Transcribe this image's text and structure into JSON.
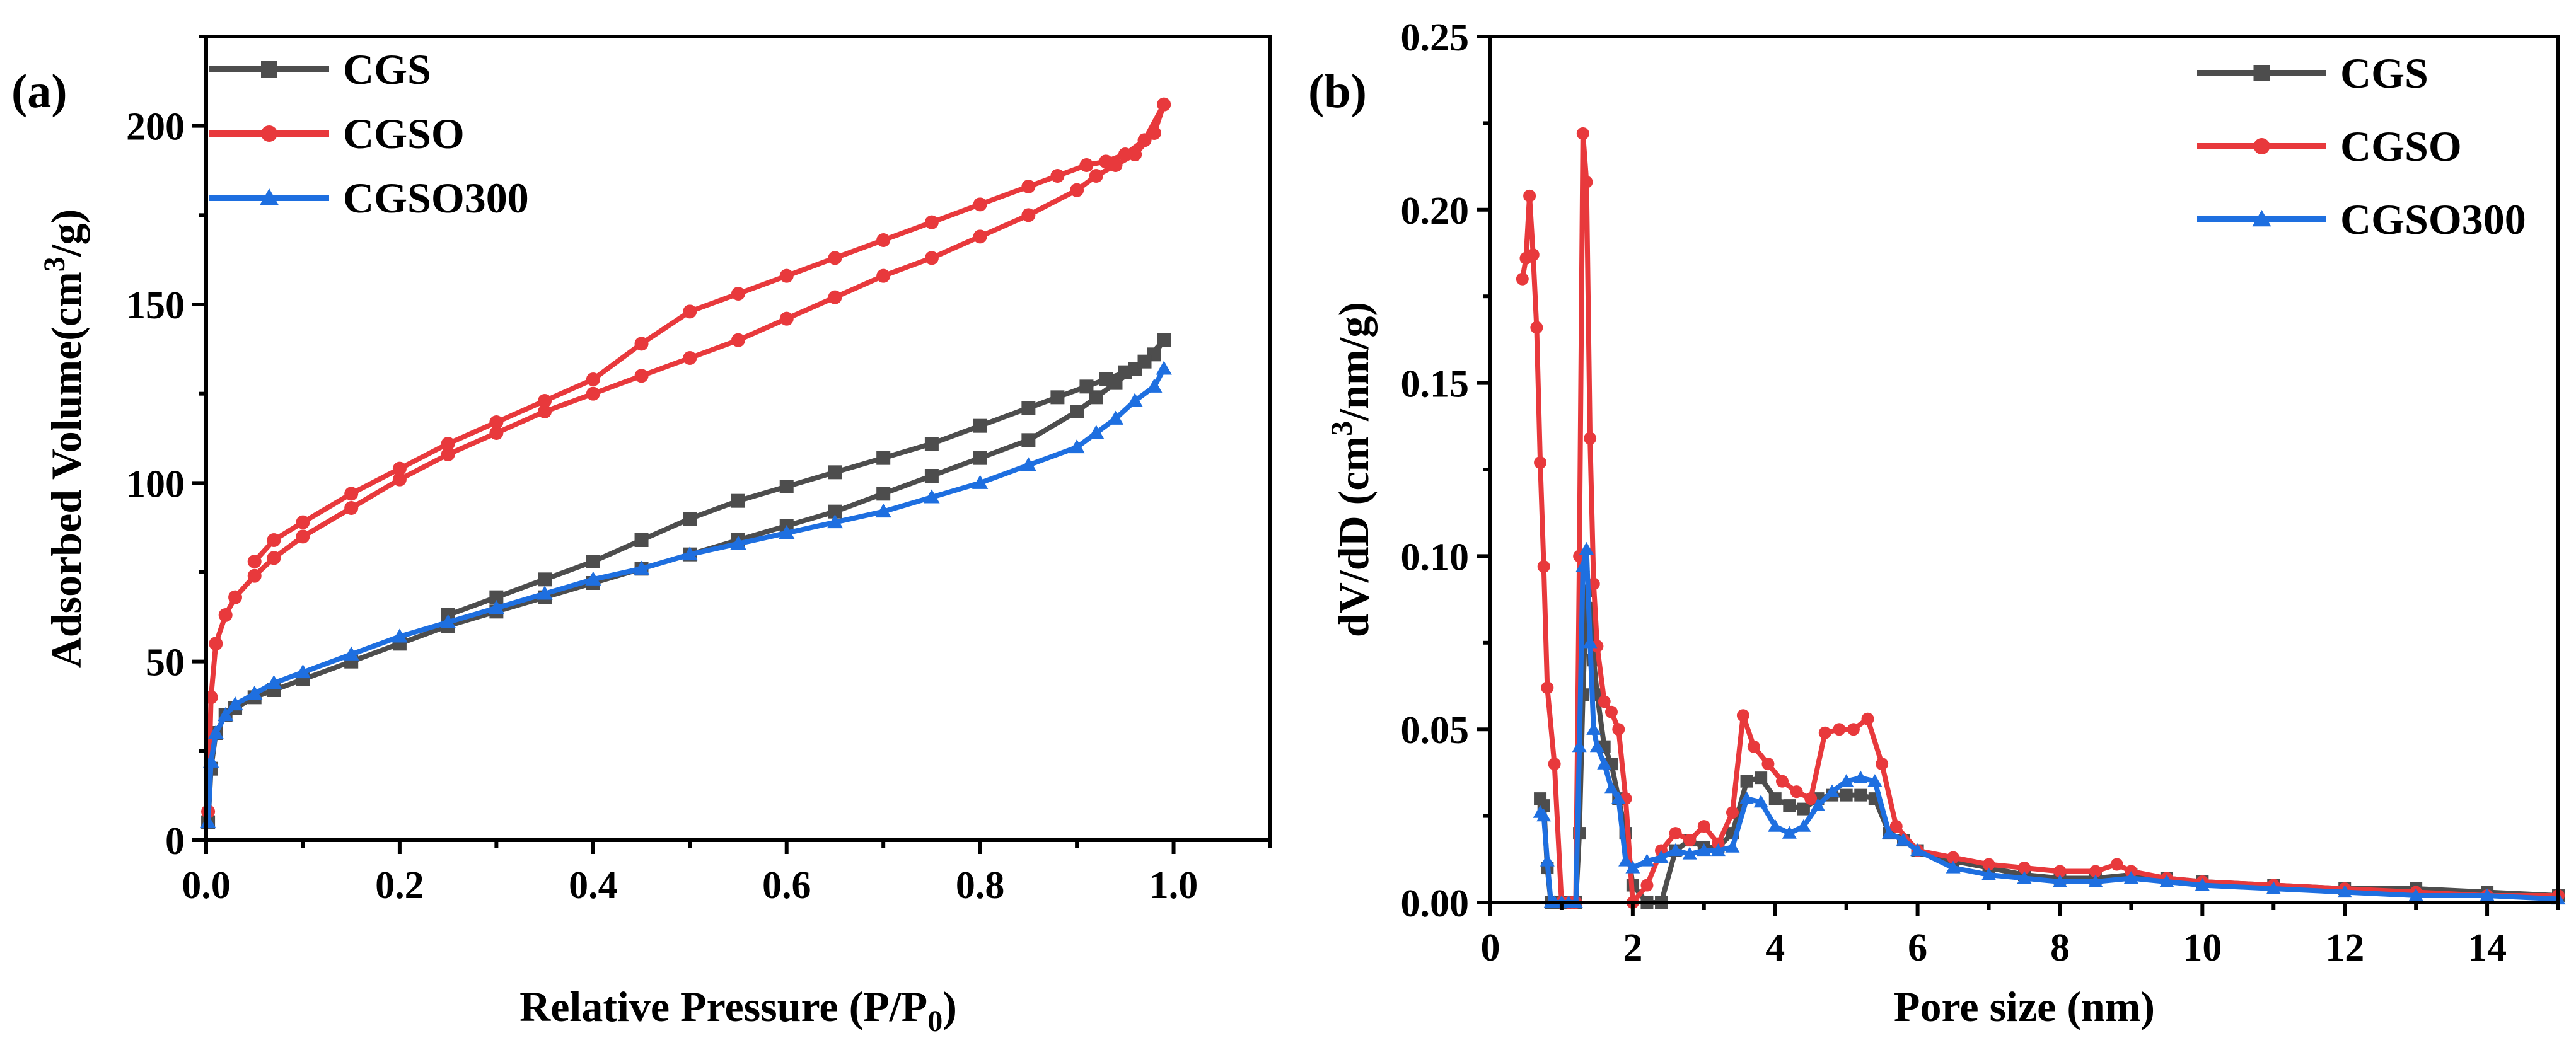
{
  "chart_data": [
    {
      "panel_label": "(a)",
      "type": "line",
      "title": "",
      "xlabel": "Relative Pressure (P/P0)",
      "ylabel": "Adsorbed Volume(cm3/g)",
      "xlim": [
        0,
        1.1
      ],
      "ylim": [
        0,
        225
      ],
      "xticks": [
        "0.0",
        "0.2",
        "0.4",
        "0.6",
        "0.8",
        "1.0"
      ],
      "yticks": [
        "0",
        "50",
        "100",
        "150",
        "200"
      ],
      "legend_position": "top-left",
      "series": [
        {
          "name": "CGS",
          "color": "#4d4d4d",
          "marker": "square",
          "x": [
            0.002,
            0.005,
            0.01,
            0.02,
            0.03,
            0.05,
            0.07,
            0.1,
            0.15,
            0.2,
            0.25,
            0.3,
            0.35,
            0.4,
            0.45,
            0.5,
            0.55,
            0.6,
            0.65,
            0.7,
            0.75,
            0.8,
            0.85,
            0.9,
            0.92,
            0.94,
            0.96,
            0.98,
            0.99,
            0.97,
            0.95,
            0.93,
            0.91,
            0.88,
            0.85,
            0.8,
            0.75,
            0.7,
            0.65,
            0.6,
            0.55,
            0.5,
            0.45,
            0.4,
            0.35,
            0.3,
            0.25
          ],
          "y": [
            5,
            20,
            30,
            35,
            37,
            40,
            42,
            45,
            50,
            55,
            60,
            64,
            68,
            72,
            76,
            80,
            84,
            88,
            92,
            97,
            102,
            107,
            112,
            120,
            124,
            128,
            132,
            136,
            140,
            134,
            131,
            129,
            127,
            124,
            121,
            116,
            111,
            107,
            103,
            99,
            95,
            90,
            84,
            78,
            73,
            68,
            63
          ]
        },
        {
          "name": "CGSO",
          "color": "#e8393c",
          "marker": "circle",
          "x": [
            0.002,
            0.005,
            0.01,
            0.02,
            0.03,
            0.05,
            0.07,
            0.1,
            0.15,
            0.2,
            0.25,
            0.3,
            0.35,
            0.4,
            0.45,
            0.5,
            0.55,
            0.6,
            0.65,
            0.7,
            0.75,
            0.8,
            0.85,
            0.9,
            0.92,
            0.94,
            0.96,
            0.98,
            0.99,
            0.97,
            0.95,
            0.93,
            0.91,
            0.88,
            0.85,
            0.8,
            0.75,
            0.7,
            0.65,
            0.6,
            0.55,
            0.5,
            0.45,
            0.4,
            0.35,
            0.3,
            0.25,
            0.2,
            0.15,
            0.1,
            0.07,
            0.05
          ],
          "y": [
            8,
            40,
            55,
            63,
            68,
            74,
            79,
            85,
            93,
            101,
            108,
            114,
            120,
            125,
            130,
            135,
            140,
            146,
            152,
            158,
            163,
            169,
            175,
            182,
            186,
            189,
            192,
            198,
            206,
            196,
            192,
            190,
            189,
            186,
            183,
            178,
            173,
            168,
            163,
            158,
            153,
            148,
            139,
            129,
            123,
            117,
            111,
            104,
            97,
            89,
            84,
            78
          ]
        },
        {
          "name": "CGSO300",
          "color": "#1e6fe0",
          "marker": "triangle",
          "x": [
            0.002,
            0.005,
            0.01,
            0.02,
            0.03,
            0.05,
            0.07,
            0.1,
            0.15,
            0.2,
            0.25,
            0.3,
            0.35,
            0.4,
            0.45,
            0.5,
            0.55,
            0.6,
            0.65,
            0.7,
            0.75,
            0.8,
            0.85,
            0.9,
            0.92,
            0.94,
            0.96,
            0.98,
            0.99
          ],
          "y": [
            5,
            22,
            30,
            35,
            38,
            41,
            44,
            47,
            52,
            57,
            61,
            65,
            69,
            73,
            76,
            80,
            83,
            86,
            89,
            92,
            96,
            100,
            105,
            110,
            114,
            118,
            123,
            127,
            132
          ]
        }
      ]
    },
    {
      "panel_label": "(b)",
      "type": "line",
      "title": "",
      "xlabel": "Pore size (nm)",
      "ylabel": "dV/dD (cm3/nm/g)",
      "xlim": [
        0,
        15
      ],
      "ylim": [
        0,
        0.25
      ],
      "xticks": [
        "0",
        "2",
        "4",
        "6",
        "8",
        "10",
        "12",
        "14"
      ],
      "yticks": [
        "0.00",
        "0.05",
        "0.10",
        "0.15",
        "0.20",
        "0.25"
      ],
      "legend_position": "top-right",
      "series": [
        {
          "name": "CGS",
          "color": "#4d4d4d",
          "marker": "square",
          "x": [
            0.7,
            0.75,
            0.8,
            0.85,
            0.9,
            1.0,
            1.1,
            1.2,
            1.25,
            1.3,
            1.35,
            1.4,
            1.45,
            1.5,
            1.6,
            1.7,
            1.8,
            1.9,
            2.0,
            2.2,
            2.4,
            2.6,
            2.8,
            3.0,
            3.2,
            3.4,
            3.6,
            3.8,
            4.0,
            4.2,
            4.4,
            4.6,
            4.8,
            5.0,
            5.2,
            5.4,
            5.6,
            5.8,
            6.0,
            6.5,
            7.0,
            7.5,
            8.0,
            8.5,
            9.0,
            9.5,
            10.0,
            11.0,
            12.0,
            13.0,
            14.0,
            15.0
          ],
          "y": [
            0.03,
            0.028,
            0.01,
            0.0,
            0.0,
            0.0,
            0.0,
            0.0,
            0.02,
            0.06,
            0.09,
            0.085,
            0.07,
            0.06,
            0.045,
            0.04,
            0.03,
            0.02,
            0.005,
            0.0,
            0.0,
            0.015,
            0.018,
            0.016,
            0.016,
            0.02,
            0.035,
            0.036,
            0.03,
            0.028,
            0.027,
            0.03,
            0.031,
            0.031,
            0.031,
            0.03,
            0.02,
            0.018,
            0.015,
            0.012,
            0.01,
            0.008,
            0.007,
            0.007,
            0.008,
            0.007,
            0.006,
            0.005,
            0.004,
            0.004,
            0.003,
            0.002
          ]
        },
        {
          "name": "CGSO",
          "color": "#e8393c",
          "marker": "circle",
          "x": [
            0.45,
            0.5,
            0.55,
            0.6,
            0.65,
            0.7,
            0.75,
            0.8,
            0.9,
            1.0,
            1.1,
            1.15,
            1.2,
            1.25,
            1.3,
            1.35,
            1.4,
            1.45,
            1.5,
            1.6,
            1.7,
            1.8,
            1.9,
            2.0,
            2.2,
            2.4,
            2.6,
            2.8,
            3.0,
            3.2,
            3.4,
            3.55,
            3.7,
            3.9,
            4.1,
            4.3,
            4.5,
            4.7,
            4.9,
            5.1,
            5.3,
            5.5,
            5.7,
            6.0,
            6.5,
            7.0,
            7.5,
            8.0,
            8.5,
            8.8,
            9.0,
            9.5,
            10.0,
            11.0,
            12.0,
            13.0,
            14.0,
            15.0
          ],
          "y": [
            0.18,
            0.186,
            0.204,
            0.187,
            0.166,
            0.127,
            0.097,
            0.062,
            0.04,
            0.0,
            0.0,
            0.0,
            0.0,
            0.1,
            0.222,
            0.208,
            0.134,
            0.092,
            0.074,
            0.058,
            0.055,
            0.05,
            0.03,
            0.0,
            0.005,
            0.015,
            0.02,
            0.018,
            0.022,
            0.017,
            0.026,
            0.054,
            0.045,
            0.04,
            0.035,
            0.032,
            0.03,
            0.049,
            0.05,
            0.05,
            0.053,
            0.04,
            0.022,
            0.015,
            0.013,
            0.011,
            0.01,
            0.009,
            0.009,
            0.011,
            0.009,
            0.007,
            0.006,
            0.005,
            0.004,
            0.003,
            0.002,
            0.002
          ]
        },
        {
          "name": "CGSO300",
          "color": "#1e6fe0",
          "marker": "triangle",
          "x": [
            0.7,
            0.75,
            0.8,
            0.85,
            0.9,
            1.0,
            1.1,
            1.2,
            1.25,
            1.3,
            1.35,
            1.4,
            1.45,
            1.5,
            1.6,
            1.7,
            1.8,
            1.9,
            2.0,
            2.2,
            2.4,
            2.6,
            2.8,
            3.0,
            3.2,
            3.4,
            3.6,
            3.8,
            4.0,
            4.2,
            4.4,
            4.6,
            4.8,
            5.0,
            5.2,
            5.4,
            5.6,
            5.8,
            6.0,
            6.5,
            7.0,
            7.5,
            8.0,
            8.5,
            9.0,
            9.5,
            10.0,
            11.0,
            12.0,
            13.0,
            14.0,
            15.0
          ],
          "y": [
            0.026,
            0.025,
            0.012,
            0.0,
            0.0,
            0.0,
            0.0,
            0.0,
            0.045,
            0.097,
            0.102,
            0.075,
            0.05,
            0.045,
            0.04,
            0.033,
            0.03,
            0.012,
            0.01,
            0.012,
            0.013,
            0.015,
            0.014,
            0.015,
            0.015,
            0.016,
            0.03,
            0.029,
            0.022,
            0.02,
            0.022,
            0.028,
            0.032,
            0.035,
            0.036,
            0.035,
            0.02,
            0.018,
            0.015,
            0.01,
            0.008,
            0.007,
            0.006,
            0.006,
            0.007,
            0.006,
            0.005,
            0.004,
            0.003,
            0.002,
            0.002,
            0.001
          ]
        }
      ]
    }
  ]
}
